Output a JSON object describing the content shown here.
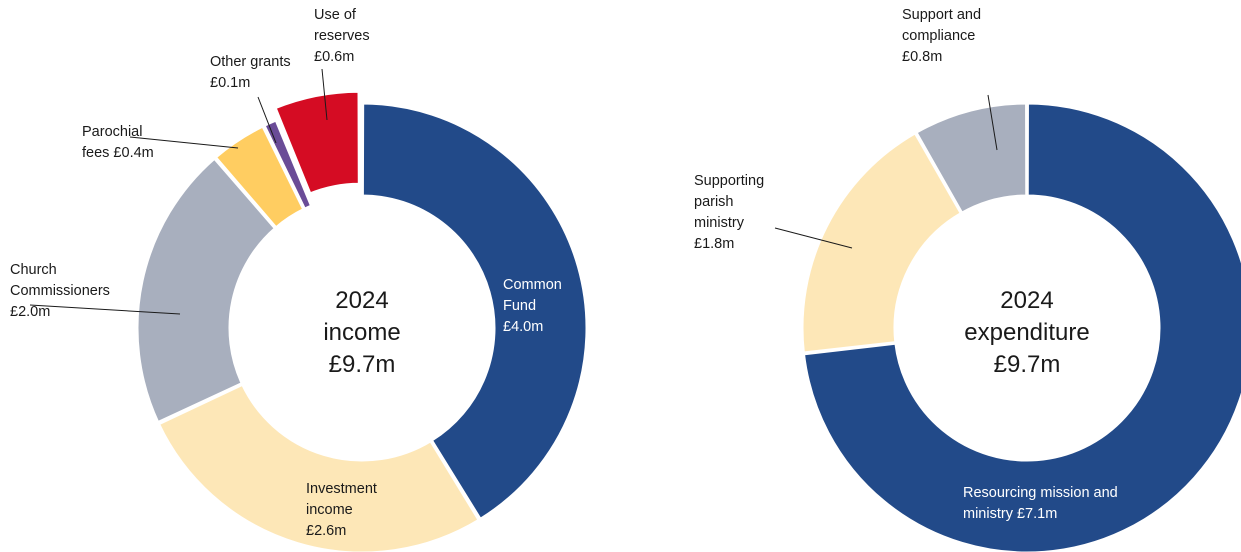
{
  "chart_data": [
    {
      "type": "pie",
      "center_title": "2024",
      "center_subtitle": "income",
      "center_total": "£9.7m",
      "unit": "£m",
      "total": 9.7,
      "slices": [
        {
          "name": "Common Fund",
          "value": 4.0,
          "label_lines": [
            "Common",
            "Fund",
            "£4.0m"
          ],
          "color": "#224a89",
          "exploded": false
        },
        {
          "name": "Investment income",
          "value": 2.6,
          "label_lines": [
            "Investment",
            "income",
            "£2.6m"
          ],
          "color": "#fde7b7",
          "exploded": false
        },
        {
          "name": "Church Commissioners",
          "value": 2.0,
          "label_lines": [
            "Church",
            "Commissioners",
            "£2.0m"
          ],
          "color": "#a8afbe",
          "exploded": false
        },
        {
          "name": "Parochial fees",
          "value": 0.4,
          "label_lines": [
            "Parochial",
            "fees £0.4m"
          ],
          "color": "#ffcd61",
          "exploded": false
        },
        {
          "name": "Other grants",
          "value": 0.1,
          "label_lines": [
            "Other grants",
            "£0.1m"
          ],
          "color": "#6a4c97",
          "exploded": false
        },
        {
          "name": "Use of reserves",
          "value": 0.6,
          "label_lines": [
            "Use of",
            "reserves",
            "£0.6m"
          ],
          "color": "#d50c23",
          "exploded": true
        }
      ]
    },
    {
      "type": "pie",
      "center_title": "2024",
      "center_subtitle": "expenditure",
      "center_total": "£9.7m",
      "unit": "£m",
      "total": 9.7,
      "slices": [
        {
          "name": "Resourcing mission and ministry",
          "value": 7.1,
          "label_lines": [
            "Resourcing mission and",
            "ministry £7.1m"
          ],
          "color": "#224a89",
          "exploded": false
        },
        {
          "name": "Supporting parish ministry",
          "value": 1.8,
          "label_lines": [
            "Supporting",
            "parish",
            "ministry",
            "£1.8m"
          ],
          "color": "#fde7b7",
          "exploded": false
        },
        {
          "name": "Support and compliance",
          "value": 0.8,
          "label_lines": [
            "Support and",
            "compliance",
            "£0.8m"
          ],
          "color": "#a8afbe",
          "exploded": false
        }
      ]
    }
  ]
}
